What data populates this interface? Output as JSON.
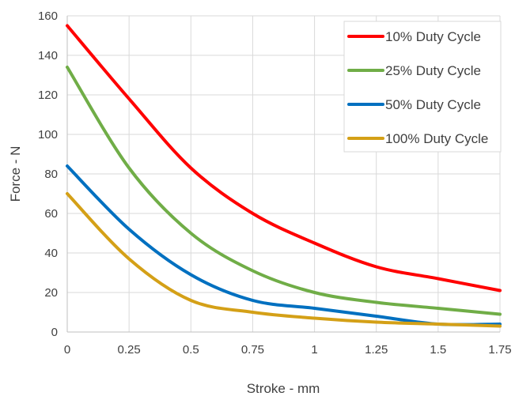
{
  "chart_data": {
    "type": "line",
    "title": "",
    "xlabel": "Stroke - mm",
    "ylabel": "Force - N",
    "xlim": [
      0,
      1.75
    ],
    "ylim": [
      0,
      160
    ],
    "x_ticks": [
      0,
      0.25,
      0.5,
      0.75,
      1,
      1.25,
      1.5,
      1.75
    ],
    "x_tick_labels": [
      "0",
      "0.25",
      "0.5",
      "0.75",
      "1",
      "1.25",
      "1.5",
      "1.75"
    ],
    "y_ticks": [
      0,
      20,
      40,
      60,
      80,
      100,
      120,
      140,
      160
    ],
    "y_tick_labels": [
      "0",
      "20",
      "40",
      "60",
      "80",
      "100",
      "120",
      "140",
      "160"
    ],
    "grid": true,
    "legend_position": "top-right",
    "x": [
      0,
      0.25,
      0.5,
      0.75,
      1,
      1.25,
      1.5,
      1.75
    ],
    "series": [
      {
        "name": "10% Duty Cycle",
        "color": "#ff0000",
        "values": [
          155,
          118,
          83,
          60,
          45,
          33,
          27,
          21
        ]
      },
      {
        "name": "25% Duty Cycle",
        "color": "#70ad47",
        "values": [
          134,
          83,
          50,
          31,
          20,
          15,
          12,
          9
        ]
      },
      {
        "name": "50% Duty Cycle",
        "color": "#0070c0",
        "values": [
          84,
          52,
          29,
          16,
          12,
          8,
          4,
          4
        ]
      },
      {
        "name": "100% Duty Cycle",
        "color": "#d4a017",
        "values": [
          70,
          37,
          16,
          10,
          7,
          5,
          4,
          3
        ]
      }
    ]
  }
}
